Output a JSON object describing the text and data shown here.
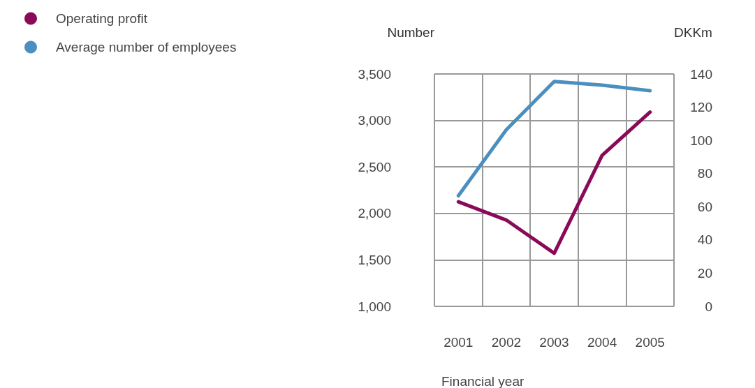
{
  "chart_data": {
    "type": "line",
    "xlabel": "Financial year",
    "ylabel": "Number",
    "y2label": "DKKm",
    "categories": [
      "2001",
      "2002",
      "2003",
      "2004",
      "2005"
    ],
    "series": [
      {
        "name": "Operating profit",
        "color": "#8a0a5a",
        "axis": "y2",
        "values": [
          63,
          52,
          32,
          91,
          117
        ]
      },
      {
        "name": "Average number of employees",
        "color": "#4a8fc0",
        "values": [
          2190,
          2900,
          3420,
          3380,
          3320
        ]
      }
    ],
    "ylim": [
      1000,
      3500
    ],
    "yticks": [
      {
        "value": 1000,
        "label": "1,000"
      },
      {
        "value": 1500,
        "label": "1,500"
      },
      {
        "value": 2000,
        "label": "2,000"
      },
      {
        "value": 2500,
        "label": "2,500"
      },
      {
        "value": 3000,
        "label": "3,000"
      },
      {
        "value": 3500,
        "label": "3,500"
      }
    ],
    "y2lim": [
      0,
      140
    ],
    "y2ticks": [
      0,
      20,
      40,
      60,
      80,
      100,
      120,
      140
    ],
    "grid": true,
    "legend": "top left",
    "marker": "none",
    "line_style": "solid"
  }
}
